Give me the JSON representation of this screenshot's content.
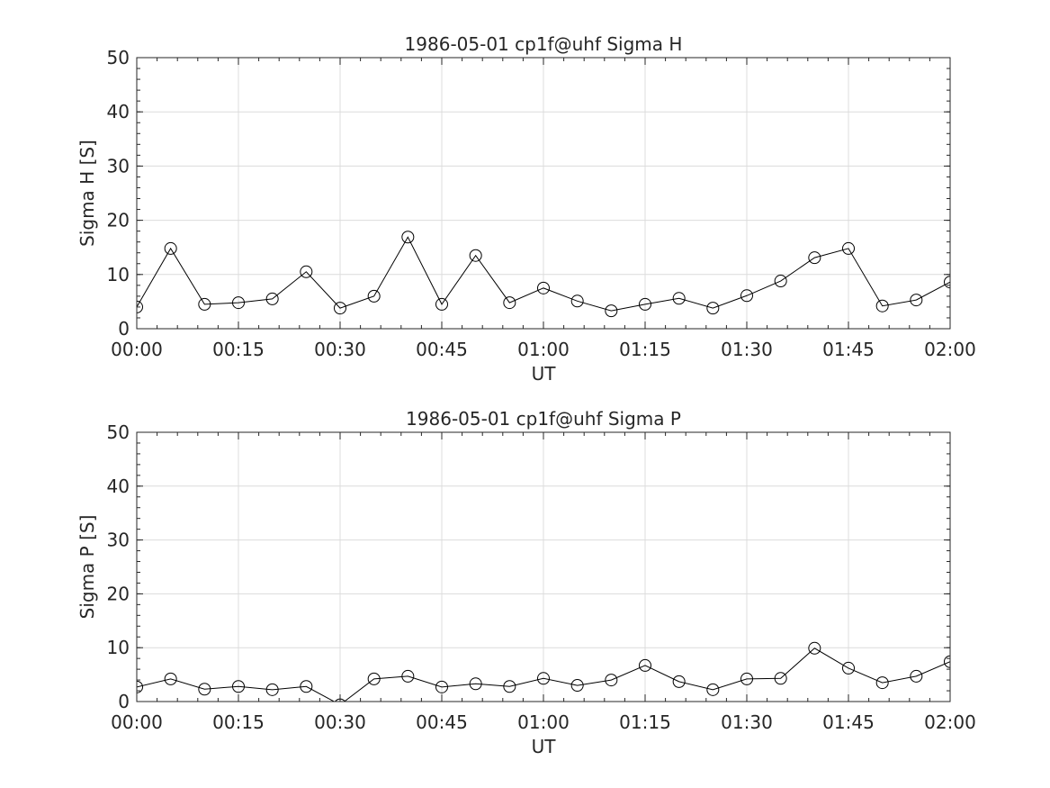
{
  "chart_data": [
    {
      "type": "line",
      "title": "1986-05-01  cp1f@uhf Sigma H",
      "xlabel": "UT",
      "ylabel": "Sigma H [S]",
      "ylim": [
        0,
        50
      ],
      "yticks": [
        "0",
        "10",
        "20",
        "30",
        "40",
        "50"
      ],
      "xticks": [
        "00:00",
        "00:15",
        "00:30",
        "00:45",
        "01:00",
        "01:15",
        "01:30",
        "01:45",
        "02:00"
      ],
      "x_minutes": [
        0,
        5,
        10,
        15,
        20,
        25,
        30,
        35,
        40,
        45,
        50,
        55,
        60,
        65,
        70,
        75,
        80,
        85,
        90,
        95,
        100,
        105,
        110,
        115,
        120
      ],
      "xlim_minutes": [
        0,
        120
      ],
      "grid": true,
      "marker": "open-circle",
      "color": "#000000",
      "values": [
        4.0,
        14.8,
        4.5,
        4.8,
        5.5,
        10.5,
        3.8,
        6.0,
        16.9,
        4.5,
        13.5,
        4.8,
        7.5,
        5.1,
        3.3,
        4.5,
        5.6,
        3.8,
        6.1,
        8.8,
        13.1,
        14.8,
        4.2,
        5.3,
        8.6
      ]
    },
    {
      "type": "line",
      "title": "1986-05-01  cp1f@uhf Sigma P",
      "xlabel": "UT",
      "ylabel": "Sigma P [S]",
      "ylim": [
        0,
        50
      ],
      "yticks": [
        "0",
        "10",
        "20",
        "30",
        "40",
        "50"
      ],
      "xticks": [
        "00:00",
        "00:15",
        "00:30",
        "00:45",
        "01:00",
        "01:15",
        "01:30",
        "01:45",
        "02:00"
      ],
      "x_minutes": [
        0,
        5,
        10,
        15,
        20,
        25,
        30,
        35,
        40,
        45,
        50,
        55,
        60,
        65,
        70,
        75,
        80,
        85,
        90,
        95,
        100,
        105,
        110,
        115,
        120
      ],
      "xlim_minutes": [
        0,
        120
      ],
      "grid": true,
      "marker": "open-circle",
      "color": "#000000",
      "values": [
        2.7,
        4.2,
        2.3,
        2.8,
        2.2,
        2.8,
        -0.6,
        4.2,
        4.7,
        2.7,
        3.3,
        2.8,
        4.3,
        3.0,
        4.0,
        6.7,
        3.7,
        2.2,
        4.2,
        4.3,
        9.9,
        6.2,
        3.5,
        4.7,
        7.4
      ]
    }
  ]
}
